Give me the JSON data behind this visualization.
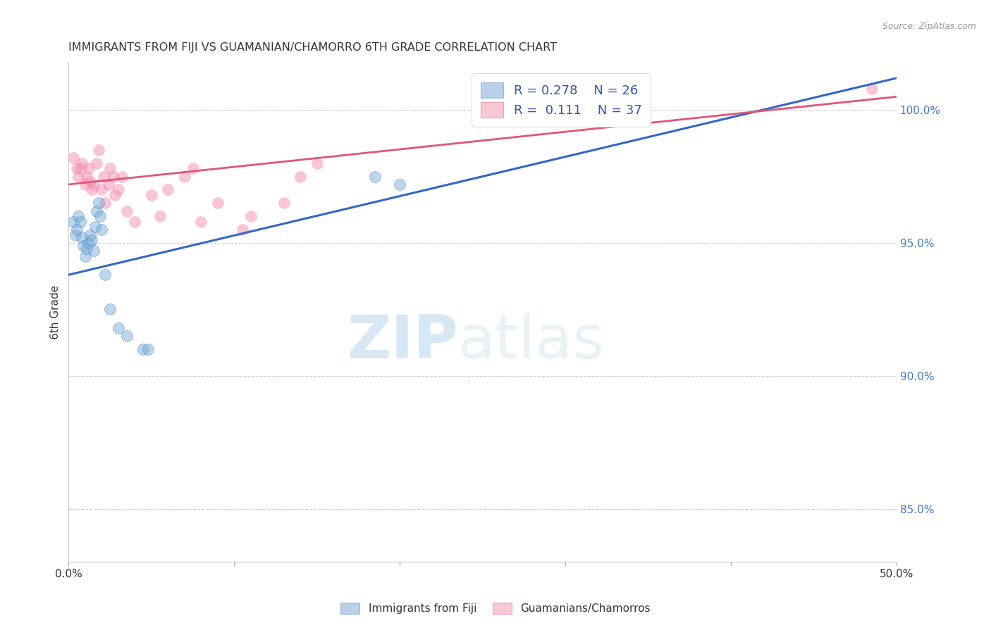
{
  "title": "IMMIGRANTS FROM FIJI VS GUAMANIAN/CHAMORRO 6TH GRADE CORRELATION CHART",
  "source": "Source: ZipAtlas.com",
  "ylabel": "6th Grade",
  "x_min": 0.0,
  "x_max": 50.0,
  "y_min": 83.0,
  "y_max": 101.8,
  "x_ticks": [
    0.0,
    10.0,
    20.0,
    30.0,
    40.0,
    50.0
  ],
  "x_tick_labels": [
    "0.0%",
    "",
    "",
    "",
    "",
    "50.0%"
  ],
  "y_ticks_right": [
    85.0,
    90.0,
    95.0,
    100.0
  ],
  "y_tick_labels_right": [
    "85.0%",
    "90.0%",
    "95.0%",
    "100.0%"
  ],
  "legend_r_blue": "R = 0.278",
  "legend_n_blue": "N = 26",
  "legend_r_pink": "R =  0.111",
  "legend_n_pink": "N = 37",
  "blue_color": "#7aaed6",
  "pink_color": "#f48fb1",
  "trend_blue_color": "#3366CC",
  "trend_pink_color": "#e05575",
  "watermark_zip": "ZIP",
  "watermark_atlas": "atlas",
  "blue_trend_x0": 0.0,
  "blue_trend_y0": 93.8,
  "blue_trend_x1": 50.0,
  "blue_trend_y1": 101.2,
  "pink_trend_x0": 0.0,
  "pink_trend_y0": 97.2,
  "pink_trend_x1": 50.0,
  "pink_trend_y1": 100.5,
  "blue_scatter_x": [
    0.3,
    0.4,
    0.5,
    0.6,
    0.7,
    0.8,
    0.9,
    1.0,
    1.1,
    1.2,
    1.3,
    1.4,
    1.5,
    1.6,
    1.7,
    1.8,
    1.9,
    2.0,
    2.2,
    2.5,
    3.0,
    3.5,
    4.5,
    4.8,
    18.5,
    20.0
  ],
  "blue_scatter_y": [
    95.8,
    95.3,
    95.5,
    96.0,
    95.8,
    95.2,
    94.9,
    94.5,
    94.8,
    95.0,
    95.3,
    95.1,
    94.7,
    95.6,
    96.2,
    96.5,
    96.0,
    95.5,
    93.8,
    92.5,
    91.8,
    91.5,
    91.0,
    91.0,
    97.5,
    97.2
  ],
  "pink_scatter_x": [
    0.3,
    0.5,
    0.6,
    0.7,
    0.8,
    1.0,
    1.1,
    1.2,
    1.3,
    1.4,
    1.5,
    1.7,
    1.8,
    2.0,
    2.1,
    2.2,
    2.4,
    2.5,
    2.7,
    2.8,
    3.0,
    3.2,
    3.5,
    4.0,
    5.0,
    5.5,
    6.0,
    7.0,
    7.5,
    8.0,
    9.0,
    10.5,
    11.0,
    13.0,
    14.0,
    15.0,
    48.5
  ],
  "pink_scatter_y": [
    98.2,
    97.8,
    97.5,
    97.8,
    98.0,
    97.2,
    97.5,
    97.8,
    97.3,
    97.0,
    97.2,
    98.0,
    98.5,
    97.0,
    97.5,
    96.5,
    97.2,
    97.8,
    97.5,
    96.8,
    97.0,
    97.5,
    96.2,
    95.8,
    96.8,
    96.0,
    97.0,
    97.5,
    97.8,
    95.8,
    96.5,
    95.5,
    96.0,
    96.5,
    97.5,
    98.0,
    100.8
  ]
}
